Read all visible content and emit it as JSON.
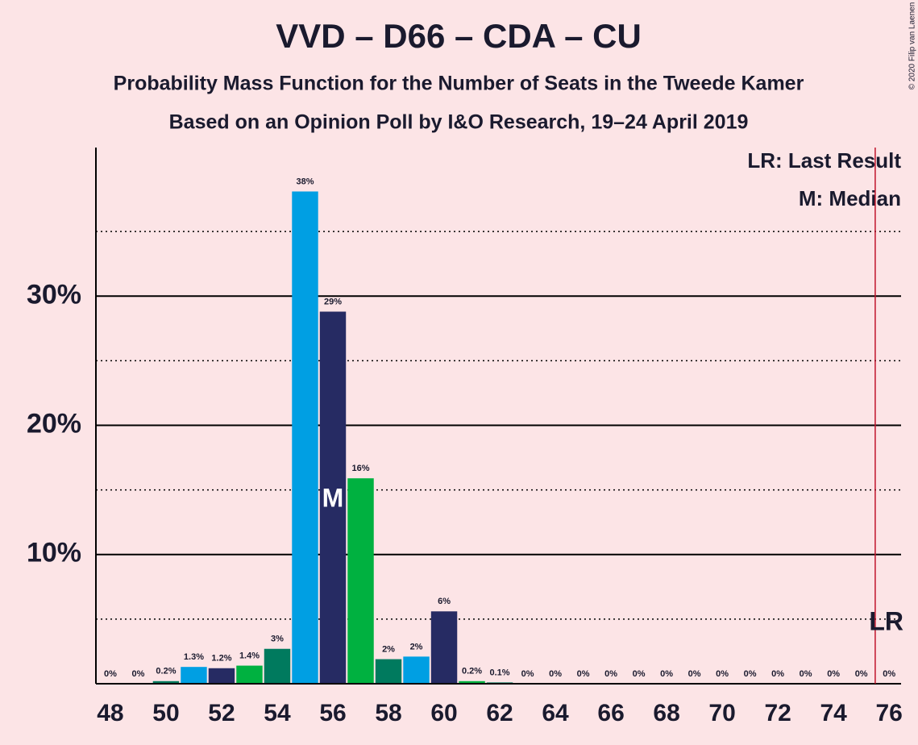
{
  "chart_data": {
    "type": "bar",
    "title": "VVD – D66 – CDA – CU",
    "subtitle": "Probability Mass Function for the Number of Seats in the Tweede Kamer",
    "subtitle2": "Based on an Opinion Poll by I&O Research, 19–24 April 2019",
    "copyright": "© 2020 Filip van Laenen",
    "legend": [
      "LR: Last Result",
      "M: Median"
    ],
    "legend_corner": "top-right",
    "x": [
      48,
      49,
      50,
      51,
      52,
      53,
      54,
      55,
      56,
      57,
      58,
      59,
      60,
      61,
      62,
      63,
      64,
      65,
      66,
      67,
      68,
      69,
      70,
      71,
      72,
      73,
      74,
      75,
      76
    ],
    "values": [
      0,
      0,
      0.2,
      1.3,
      1.2,
      1.4,
      2.7,
      38.1,
      28.8,
      15.9,
      1.9,
      2.1,
      5.6,
      0.2,
      0.1,
      0,
      0,
      0,
      0,
      0,
      0,
      0,
      0,
      0,
      0,
      0,
      0,
      0,
      0
    ],
    "value_labels": [
      "0%",
      "0%",
      "0.2%",
      "1.3%",
      "1.2%",
      "1.4%",
      "3%",
      "38%",
      "29%",
      "16%",
      "2%",
      "2%",
      "6%",
      "0.2%",
      "0.1%",
      "0%",
      "0%",
      "0%",
      "0%",
      "0%",
      "0%",
      "0%",
      "0%",
      "0%",
      "0%",
      "0%",
      "0%",
      "0%",
      "0%"
    ],
    "colors": [
      "#262b63",
      "#00b140",
      "#007a5e",
      "#009fe3",
      "#262b63",
      "#00b140",
      "#007a5e",
      "#009fe3",
      "#262b63",
      "#00b140",
      "#007a5e",
      "#009fe3",
      "#262b63",
      "#00b140",
      "#007a5e",
      "#009fe3",
      "#262b63",
      "#00b140",
      "#007a5e",
      "#009fe3",
      "#262b63",
      "#00b140",
      "#007a5e",
      "#009fe3",
      "#262b63",
      "#00b140",
      "#007a5e",
      "#009fe3",
      "#262b63"
    ],
    "median": 56,
    "median_label": "M",
    "last_result": 76,
    "last_result_label": "LR",
    "xlim": [
      47.48,
      76.43
    ],
    "xticks": [
      48,
      50,
      52,
      54,
      56,
      58,
      60,
      62,
      64,
      66,
      68,
      70,
      72,
      74,
      76
    ],
    "ylim": [
      0,
      41.5
    ],
    "yticks": [
      {
        "value": 10,
        "label": "10%"
      },
      {
        "value": 20,
        "label": "20%"
      },
      {
        "value": 30,
        "label": "30%"
      }
    ],
    "minor_yticks": [
      5,
      15,
      25,
      35
    ],
    "grid": true
  }
}
